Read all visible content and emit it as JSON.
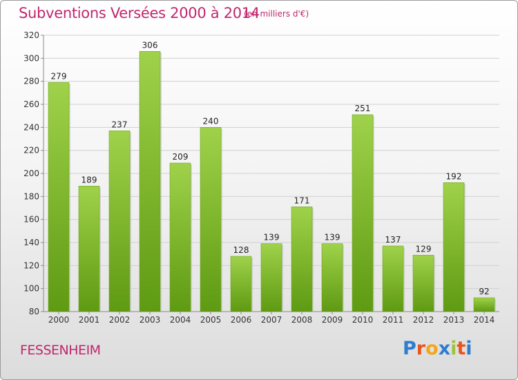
{
  "header": {
    "title": "Subventions Versées 2000 à 2014",
    "subtitle": "(en milliers d'€)"
  },
  "footer": {
    "town": "FESSENHEIM",
    "logo_letters": [
      "P",
      "r",
      "o",
      "x",
      "i",
      "t",
      "i"
    ],
    "logo_colors": [
      "#2d7dd2",
      "#e8541c",
      "#f2a71b",
      "#2d7dd2",
      "#9bc53d",
      "#e8541c",
      "#2d7dd2"
    ]
  },
  "colors": {
    "title": "#c0266d",
    "bar_top": "#9fd24a",
    "bar_bottom": "#5e9a12"
  },
  "chart_data": {
    "type": "bar",
    "categories": [
      "2000",
      "2001",
      "2002",
      "2003",
      "2004",
      "2005",
      "2006",
      "2007",
      "2008",
      "2009",
      "2010",
      "2011",
      "2012",
      "2013",
      "2014"
    ],
    "values": [
      279,
      189,
      237,
      306,
      209,
      240,
      128,
      139,
      171,
      139,
      251,
      137,
      129,
      192,
      92
    ],
    "title": "Subventions Versées 2000 à 2014",
    "xlabel": "",
    "ylabel": "",
    "ylim": [
      80,
      320
    ],
    "yticks": [
      80,
      100,
      120,
      140,
      160,
      180,
      200,
      220,
      240,
      260,
      280,
      300,
      320
    ],
    "grid": true,
    "legend": "none"
  }
}
